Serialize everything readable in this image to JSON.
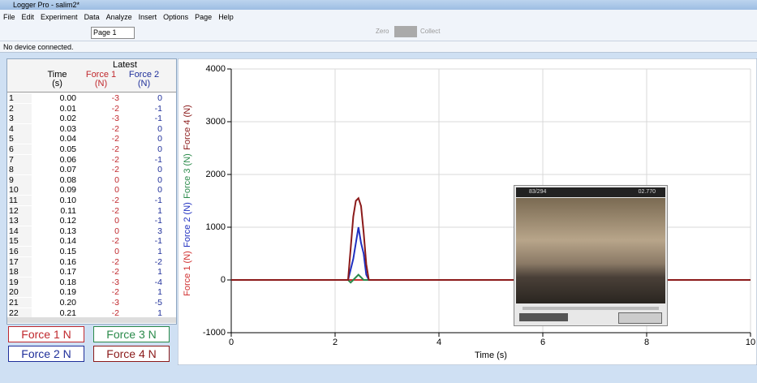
{
  "window": {
    "title": "Logger Pro - salim2*",
    "menu": [
      "File",
      "Edit",
      "Experiment",
      "Data",
      "Analyze",
      "Insert",
      "Options",
      "Page",
      "Help"
    ]
  },
  "toolbar": {
    "page": "Page 1",
    "zero": "Zero",
    "collect": "Collect"
  },
  "status": "No device connected.",
  "table": {
    "group": "Latest",
    "headers": [
      [
        "Time",
        "(s)"
      ],
      [
        "Force 1",
        "(N)"
      ],
      [
        "Force 2",
        "(N)"
      ]
    ],
    "rows": [
      [
        "1",
        "0.00",
        "-3",
        "0"
      ],
      [
        "2",
        "0.01",
        "-2",
        "-1"
      ],
      [
        "3",
        "0.02",
        "-3",
        "-1"
      ],
      [
        "4",
        "0.03",
        "-2",
        "0"
      ],
      [
        "5",
        "0.04",
        "-2",
        "0"
      ],
      [
        "6",
        "0.05",
        "-2",
        "0"
      ],
      [
        "7",
        "0.06",
        "-2",
        "-1"
      ],
      [
        "8",
        "0.07",
        "-2",
        "0"
      ],
      [
        "9",
        "0.08",
        "0",
        "0"
      ],
      [
        "10",
        "0.09",
        "0",
        "0"
      ],
      [
        "11",
        "0.10",
        "-2",
        "-1"
      ],
      [
        "12",
        "0.11",
        "-2",
        "1"
      ],
      [
        "13",
        "0.12",
        "0",
        "-1"
      ],
      [
        "14",
        "0.13",
        "0",
        "3"
      ],
      [
        "15",
        "0.14",
        "-2",
        "-1"
      ],
      [
        "16",
        "0.15",
        "0",
        "1"
      ],
      [
        "17",
        "0.16",
        "-2",
        "-2"
      ],
      [
        "18",
        "0.17",
        "-2",
        "1"
      ],
      [
        "19",
        "0.18",
        "-3",
        "-4"
      ],
      [
        "20",
        "0.19",
        "-2",
        "1"
      ],
      [
        "21",
        "0.20",
        "-3",
        "-5"
      ],
      [
        "22",
        "0.21",
        "-2",
        "1"
      ]
    ]
  },
  "legend_buttons": [
    {
      "label": "Force 1  N",
      "color": "#c0282d"
    },
    {
      "label": "Force 3  N",
      "color": "#2a8a4a"
    },
    {
      "label": "Force 2  N",
      "color": "#1f2f9a"
    },
    {
      "label": "Force 4  N",
      "color": "#8b1a1a"
    }
  ],
  "video": {
    "frame": "83/294",
    "time": "02.770"
  },
  "chart_data": {
    "type": "line",
    "x_label": "Time (s)",
    "x": [
      0,
      2.25,
      2.3,
      2.35,
      2.4,
      2.45,
      2.5,
      2.55,
      2.6,
      2.65,
      2.7,
      10
    ],
    "series": [
      {
        "name": "Force 1 (N)",
        "color": "#d03030",
        "values": [
          0,
          0,
          0,
          0,
          0,
          0,
          0,
          0,
          0,
          0,
          0,
          0
        ]
      },
      {
        "name": "Force 2 (N)",
        "color": "#2030c0",
        "values": [
          0,
          0,
          200,
          400,
          700,
          1000,
          700,
          500,
          100,
          0,
          0,
          0
        ]
      },
      {
        "name": "Force 3 (N)",
        "color": "#2a8a4a",
        "values": [
          0,
          0,
          -50,
          0,
          50,
          100,
          50,
          0,
          0,
          0,
          0,
          0
        ]
      },
      {
        "name": "Force 4 (N)",
        "color": "#8b1a1a",
        "values": [
          0,
          0,
          600,
          1200,
          1500,
          1550,
          1400,
          900,
          300,
          0,
          0,
          0
        ]
      }
    ],
    "xlim": [
      0,
      10
    ],
    "ylim": [
      -1000,
      4000
    ],
    "xticks": [
      0,
      2,
      4,
      6,
      8,
      10
    ],
    "yticks": [
      -1000,
      0,
      1000,
      2000,
      3000,
      4000
    ],
    "grid": true
  }
}
